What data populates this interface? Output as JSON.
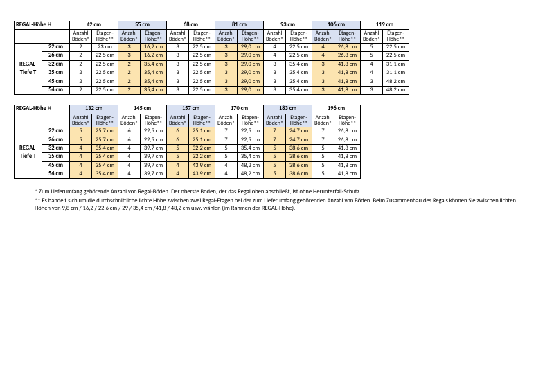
{
  "labels": {
    "regal_hoehe": "REGAL-Höhe H",
    "regal_tiefe_1": "REGAL-",
    "regal_tiefe_2": "Tiefe T",
    "anz": "Anzahl Böden*",
    "etg": "Etagen-Höhe**"
  },
  "depths": [
    "22 cm",
    "26 cm",
    "32 cm",
    "35 cm",
    "45 cm",
    "54 cm"
  ],
  "table1": {
    "heights": [
      "42 cm",
      "55 cm",
      "68 cm",
      "81 cm",
      "93 cm",
      "106 cm",
      "119 cm"
    ],
    "hlColsBlue": [
      1,
      3,
      5
    ],
    "rows": [
      [
        [
          "2",
          "23 cm"
        ],
        [
          "3",
          "16,2 cm"
        ],
        [
          "3",
          "22,5 cm"
        ],
        [
          "3",
          "29,0 cm"
        ],
        [
          "4",
          "22,5 cm"
        ],
        [
          "4",
          "26,8 cm"
        ],
        [
          "5",
          "22,5 cm"
        ]
      ],
      [
        [
          "2",
          "22,5 cm"
        ],
        [
          "3",
          "16,2 cm"
        ],
        [
          "3",
          "22,5 cm"
        ],
        [
          "3",
          "29,0 cm"
        ],
        [
          "4",
          "22,5 cm"
        ],
        [
          "4",
          "26,8 cm"
        ],
        [
          "5",
          "22,5 cm"
        ]
      ],
      [
        [
          "2",
          "22,5 cm"
        ],
        [
          "2",
          "35,4 cm"
        ],
        [
          "3",
          "22,5 cm"
        ],
        [
          "3",
          "29,0 cm"
        ],
        [
          "3",
          "35,4 cm"
        ],
        [
          "3",
          "41,8 cm"
        ],
        [
          "4",
          "31,1 cm"
        ]
      ],
      [
        [
          "2",
          "22,5 cm"
        ],
        [
          "2",
          "35,4 cm"
        ],
        [
          "3",
          "22,5 cm"
        ],
        [
          "3",
          "29,0 cm"
        ],
        [
          "3",
          "35,4 cm"
        ],
        [
          "3",
          "41,8 cm"
        ],
        [
          "4",
          "31,1 cm"
        ]
      ],
      [
        [
          "2",
          "22,5 cm"
        ],
        [
          "2",
          "35,4 cm"
        ],
        [
          "3",
          "22,5 cm"
        ],
        [
          "3",
          "29,0 cm"
        ],
        [
          "3",
          "35,4 cm"
        ],
        [
          "3",
          "41,8 cm"
        ],
        [
          "3",
          "48,2 cm"
        ]
      ],
      [
        [
          "2",
          "22,5 cm"
        ],
        [
          "2",
          "35,4 cm"
        ],
        [
          "3",
          "22,5 cm"
        ],
        [
          "3",
          "29,0 cm"
        ],
        [
          "3",
          "35,4 cm"
        ],
        [
          "3",
          "41,8 cm"
        ],
        [
          "3",
          "48,2 cm"
        ]
      ]
    ]
  },
  "table2": {
    "heights": [
      "132 cm",
      "145 cm",
      "157 cm",
      "170 cm",
      "183 cm",
      "196 cm"
    ],
    "hlColsBlue": [
      0,
      2,
      4
    ],
    "rows": [
      [
        [
          "5",
          "25,7 cm"
        ],
        [
          "6",
          "22,5 cm"
        ],
        [
          "6",
          "25,1 cm"
        ],
        [
          "7",
          "22,5 cm"
        ],
        [
          "7",
          "24,7 cm"
        ],
        [
          "7",
          "26,8 cm"
        ]
      ],
      [
        [
          "5",
          "25,7 cm"
        ],
        [
          "6",
          "22,5 cm"
        ],
        [
          "6",
          "25,1 cm"
        ],
        [
          "7",
          "22,5 cm"
        ],
        [
          "7",
          "24,7 cm"
        ],
        [
          "7",
          "26,8 cm"
        ]
      ],
      [
        [
          "4",
          "35,4 cm"
        ],
        [
          "4",
          "39,7 cm"
        ],
        [
          "5",
          "32,2 cm"
        ],
        [
          "5",
          "35,4 cm"
        ],
        [
          "5",
          "38,6 cm"
        ],
        [
          "5",
          "41,8 cm"
        ]
      ],
      [
        [
          "4",
          "35,4 cm"
        ],
        [
          "4",
          "39,7 cm"
        ],
        [
          "5",
          "32,2 cm"
        ],
        [
          "5",
          "35,4 cm"
        ],
        [
          "5",
          "38,6 cm"
        ],
        [
          "5",
          "41,8 cm"
        ]
      ],
      [
        [
          "4",
          "35,4 cm"
        ],
        [
          "4",
          "39,7 cm"
        ],
        [
          "4",
          "43,9 cm"
        ],
        [
          "4",
          "48,2 cm"
        ],
        [
          "5",
          "38,6 cm"
        ],
        [
          "5",
          "41,8 cm"
        ]
      ],
      [
        [
          "4",
          "35,4 cm"
        ],
        [
          "4",
          "39,7 cm"
        ],
        [
          "4",
          "43,9 cm"
        ],
        [
          "4",
          "48,2 cm"
        ],
        [
          "5",
          "38,6 cm"
        ],
        [
          "5",
          "41,8 cm"
        ]
      ]
    ]
  },
  "footnotes": {
    "f1": "*  Zum Lieferumfang gehörende Anzahl von Regal-Böden. Der oberste Boden, der das Regal oben abschließt, ist ohne Herunterfall-Schutz.",
    "f2": "** Es handelt sich um die durchschnittliche lichte Höhe zwischen zwei Regal-Etagen bei der zum Lieferumfang gehörenden Anzahl von  Böden. Beim Zusammenbau des Regals können Sie zwischen lichten Höhen von 9,8 cm / 16,2 / 22,6 cm / 29 / 35,4 cm /41,8 / 48,2 cm usw. wählen (im Rahmen der REGAL-Höhe)."
  },
  "colors": {
    "blue": "#d9e1f2",
    "orange": "#fce4b0"
  }
}
